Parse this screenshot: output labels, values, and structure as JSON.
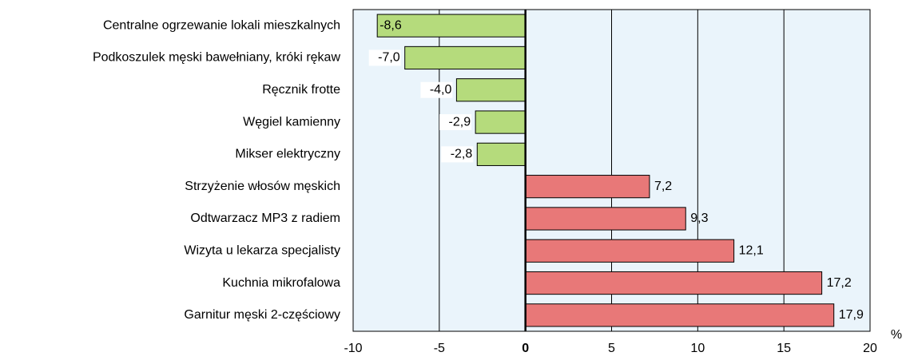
{
  "chart_data": {
    "type": "bar",
    "orientation": "horizontal",
    "categories": [
      "Centralne ogrzewanie lokali mieszkalnych",
      "Podkoszulek męski bawełniany, króki rękaw",
      "Ręcznik frotte",
      "Węgiel kamienny",
      "Mikser elektryczny",
      "Strzyżenie włosów męskich",
      "Odtwarzacz MP3 z radiem",
      "Wizyta u lekarza specjalisty",
      "Kuchnia mikrofalowa",
      "Garnitur męski 2-częściowy"
    ],
    "values": [
      -8.6,
      -7.0,
      -4.0,
      -2.9,
      -2.8,
      7.2,
      9.3,
      12.1,
      17.2,
      17.9
    ],
    "value_labels": [
      "-8,6",
      "-7,0",
      "-4,0",
      "-2,9",
      "-2,8",
      "7,2",
      "9,3",
      "12,1",
      "17,2",
      "17,9"
    ],
    "negative_color": "#b5db7c",
    "positive_color": "#e87878",
    "xlim": [
      -10,
      20
    ],
    "xticks": [
      -10,
      -5,
      0,
      5,
      10,
      15,
      20
    ],
    "x_unit": "%",
    "grid": true
  }
}
